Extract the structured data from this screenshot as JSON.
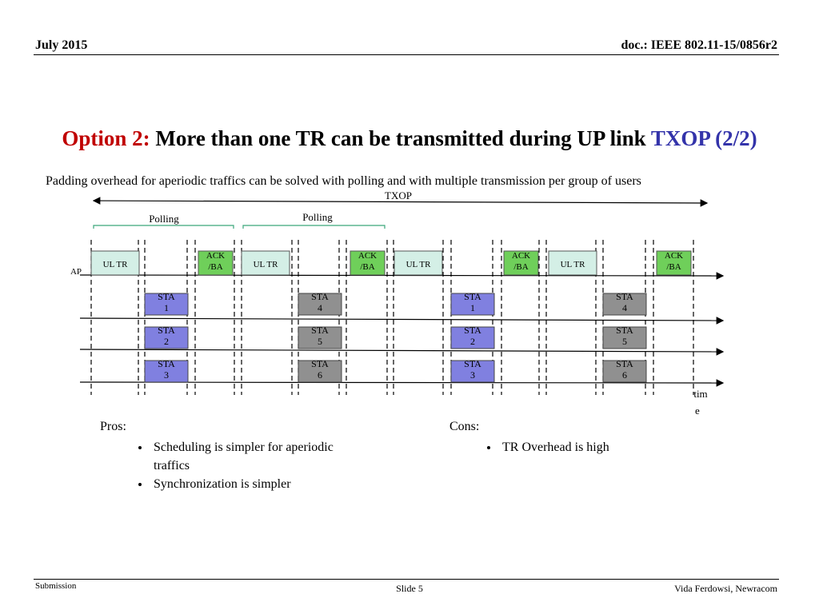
{
  "header": {
    "date": "July 2015",
    "doc": "doc.: IEEE 802.11-15/0856r2"
  },
  "title": {
    "prefix": "Option 2:",
    "main": "More than one TR can be transmitted during UP link",
    "suffix": "TXOP (2/2)"
  },
  "intro": "Padding overhead for aperiodic traffics can be solved with polling and with multiple transmission per group of users",
  "diagram": {
    "txop_label": "TXOP",
    "polling_label": "Polling",
    "ap_label": "AP",
    "ul_tr_label": "UL TR",
    "ack_label": [
      "ACK",
      "/BA"
    ],
    "time_label": [
      "tim",
      "e"
    ],
    "sta_groups": [
      {
        "color": "#8080e0",
        "stations": [
          [
            "STA",
            "1"
          ],
          [
            "STA",
            "2"
          ],
          [
            "STA",
            "3"
          ]
        ]
      },
      {
        "color": "#909090",
        "stations": [
          [
            "STA",
            "4"
          ],
          [
            "STA",
            "5"
          ],
          [
            "STA",
            "6"
          ]
        ]
      },
      {
        "color": "#8080e0",
        "stations": [
          [
            "STA",
            "1"
          ],
          [
            "STA",
            "2"
          ],
          [
            "STA",
            "3"
          ]
        ]
      },
      {
        "color": "#909090",
        "stations": [
          [
            "STA",
            "4"
          ],
          [
            "STA",
            "5"
          ],
          [
            "STA",
            "6"
          ]
        ]
      }
    ],
    "colors": {
      "ul_tr": "#d4efe6",
      "ack": "#6fcf5a",
      "polling_bracket": "#3aa67a"
    }
  },
  "pros": {
    "label": "Pros:",
    "items": [
      "Scheduling is simpler for aperiodic traffics",
      "Synchronization is simpler"
    ]
  },
  "cons": {
    "label": "Cons:",
    "items": [
      "TR Overhead is high"
    ]
  },
  "footer": {
    "left": "Submission",
    "center": "Slide 5",
    "right": "Vida Ferdowsi, Newracom"
  }
}
